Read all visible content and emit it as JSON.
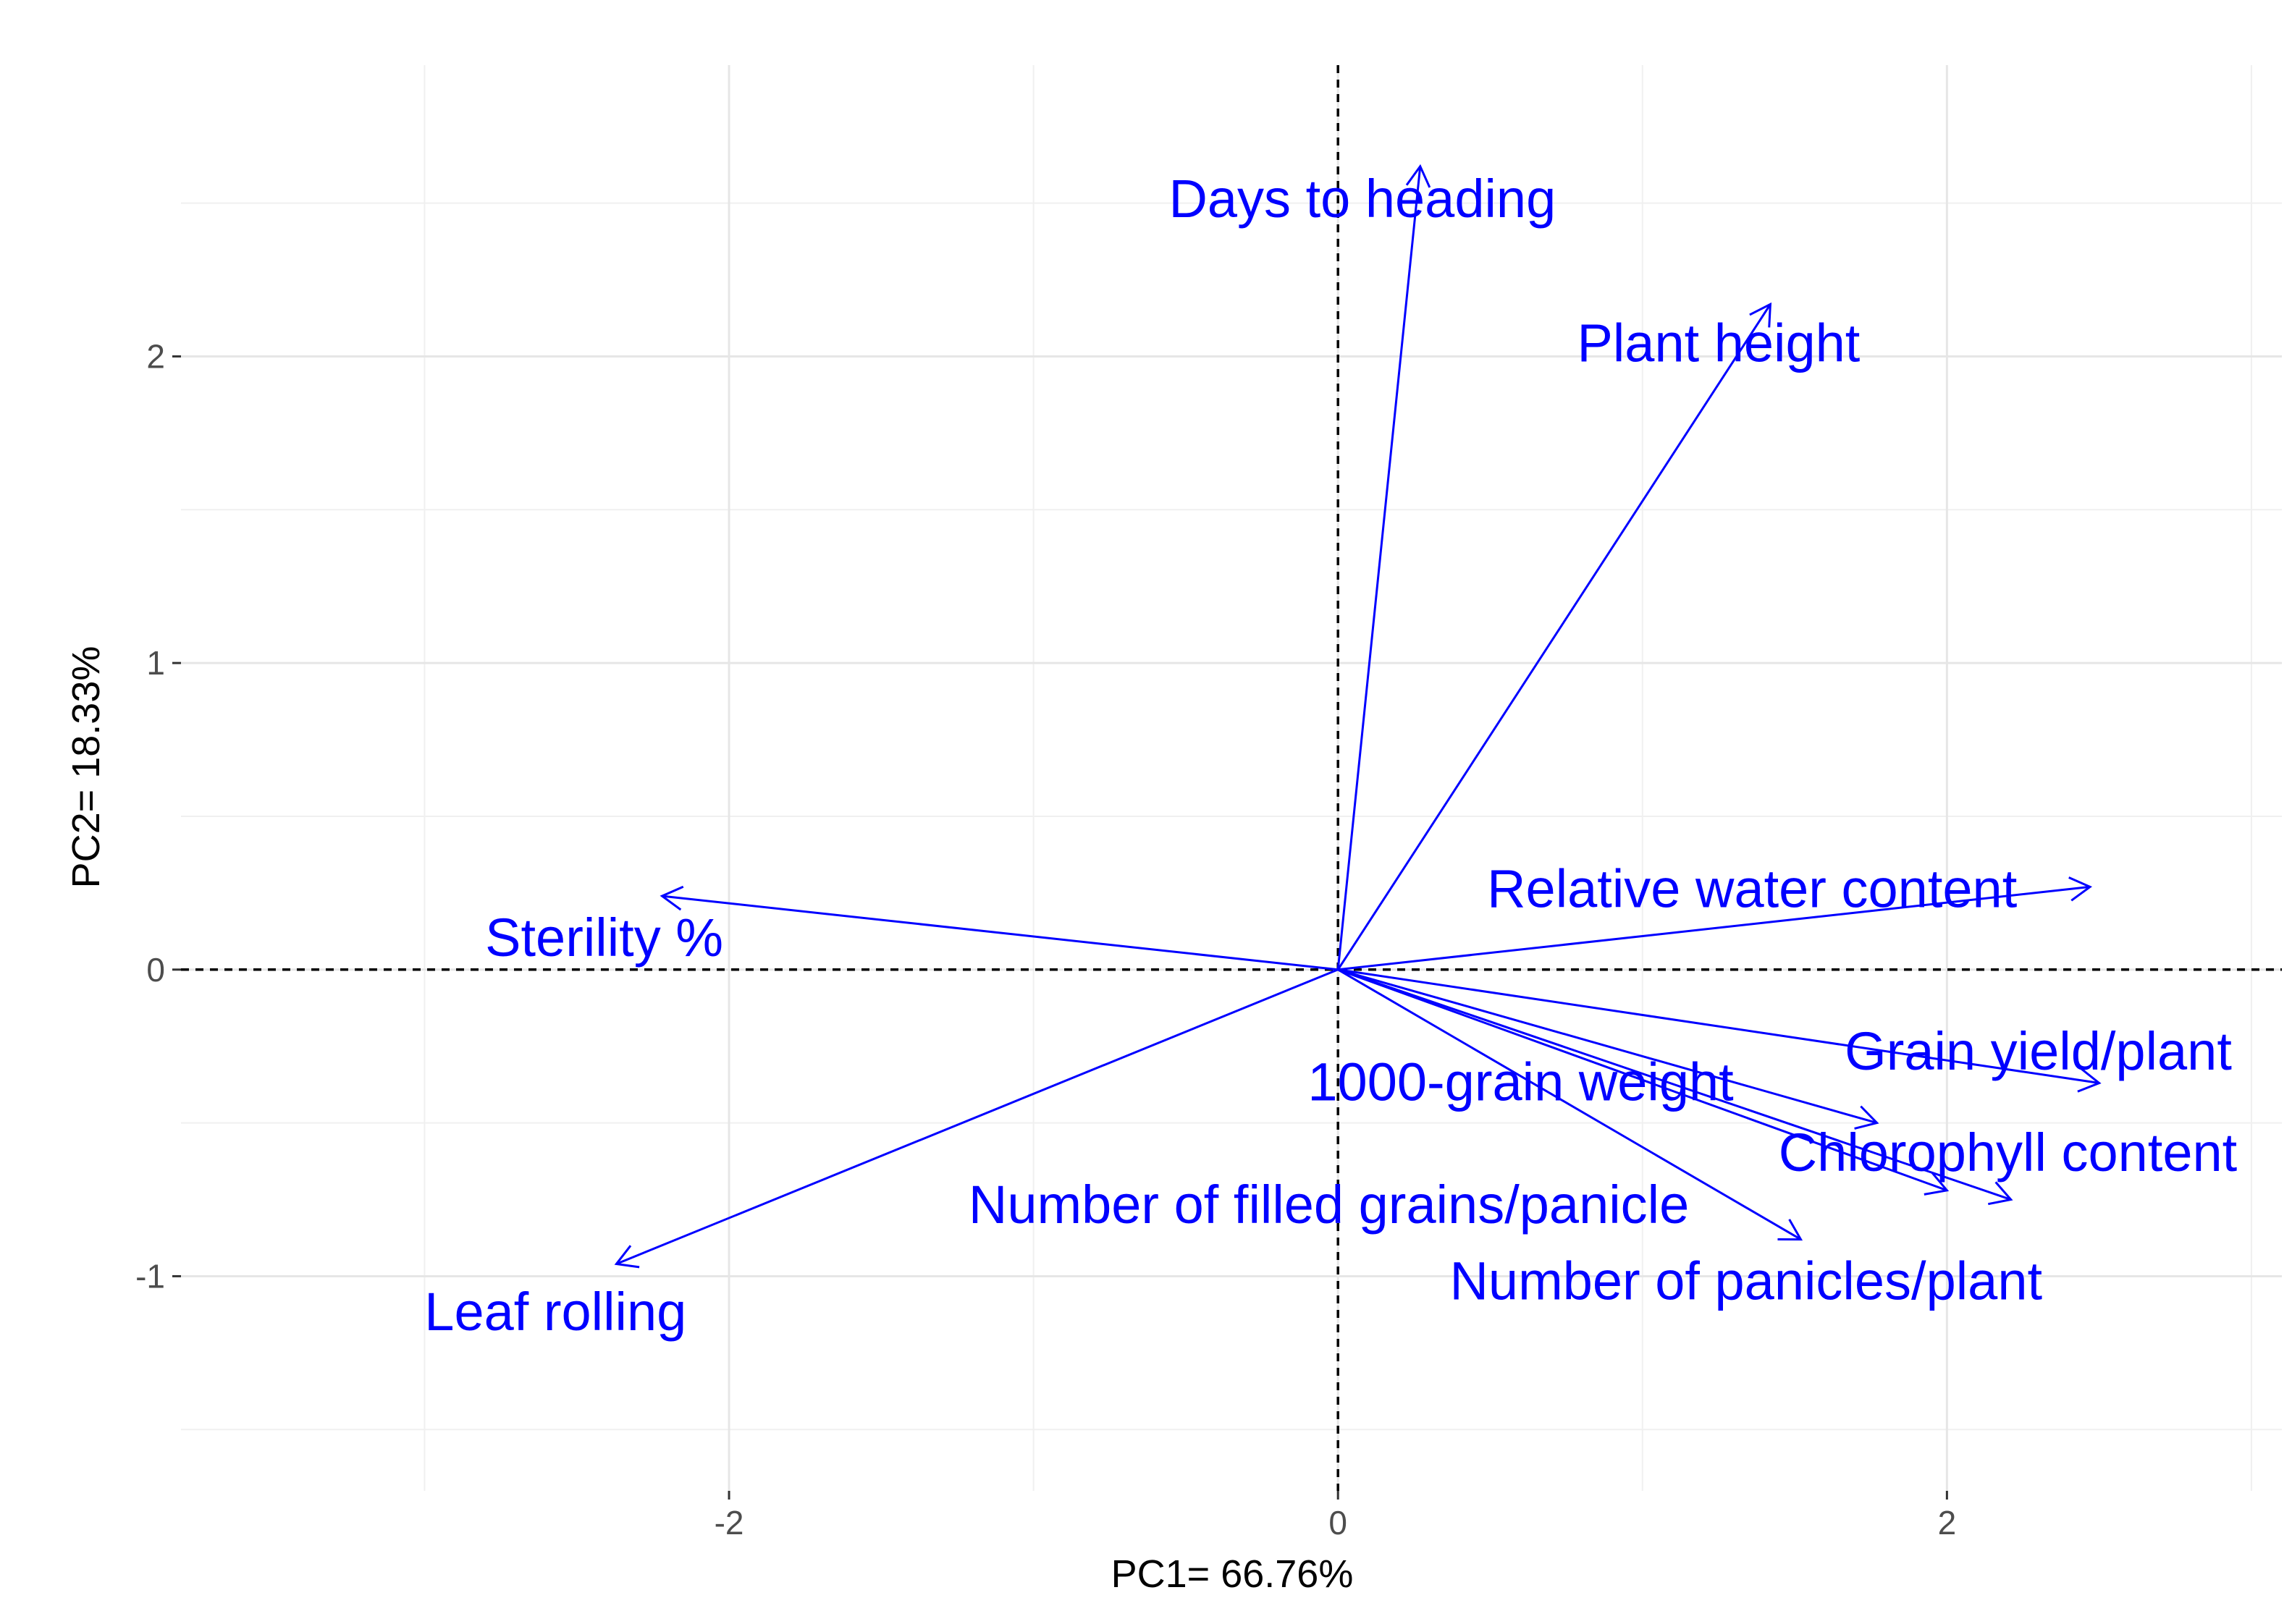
{
  "chart_data": {
    "type": "scatter",
    "subtype": "pca-loading-biplot",
    "xlabel": "PC1= 66.76%",
    "ylabel": "PC2= 18.33%",
    "xlim": [
      -3.8,
      3.1
    ],
    "ylim": [
      -1.7,
      2.95
    ],
    "x_major_ticks": [
      -2,
      0,
      2
    ],
    "y_major_ticks": [
      -1,
      0,
      1,
      2
    ],
    "x_minor_gridlines": [
      -3,
      -1,
      1,
      3
    ],
    "y_minor_gridlines": [
      -1.5,
      -0.5,
      0.5,
      1.5,
      2.5
    ],
    "grid": true,
    "reference_lines": {
      "x": 0,
      "y": 0,
      "style": "dashed"
    },
    "arrow_color": "#0000ff",
    "label_color": "#0000ff",
    "vectors": [
      {
        "name": "Days to heading",
        "x": 0.27,
        "y": 2.62,
        "label_x": 0.08,
        "label_y": 2.5
      },
      {
        "name": "Plant height",
        "x": 1.42,
        "y": 2.17,
        "label_x": 1.25,
        "label_y": 2.03
      },
      {
        "name": "Relative water content",
        "x": 2.47,
        "y": 0.27,
        "label_x": 1.36,
        "label_y": 0.25
      },
      {
        "name": "Sterility %",
        "x": -2.22,
        "y": 0.24,
        "label_x": -2.41,
        "label_y": 0.09
      },
      {
        "name": "Grain yield/plant",
        "x": 2.5,
        "y": -0.37,
        "label_x": 2.3,
        "label_y": -0.28
      },
      {
        "name": "1000-grain weight",
        "x": 1.77,
        "y": -0.5,
        "label_x": 0.6,
        "label_y": -0.38
      },
      {
        "name": "Chlorophyll content",
        "x": 2.21,
        "y": -0.75,
        "label_x": 2.2,
        "label_y": -0.61
      },
      {
        "name": "Number of filled grains/panicle",
        "x": 2.0,
        "y": -0.72,
        "label_x": -0.03,
        "label_y": -0.78
      },
      {
        "name": "Number of panicles/plant",
        "x": 1.52,
        "y": -0.88,
        "label_x": 1.34,
        "label_y": -1.03
      },
      {
        "name": "Leaf rolling",
        "x": -2.37,
        "y": -0.96,
        "label_x": -2.57,
        "label_y": -1.13
      }
    ]
  }
}
